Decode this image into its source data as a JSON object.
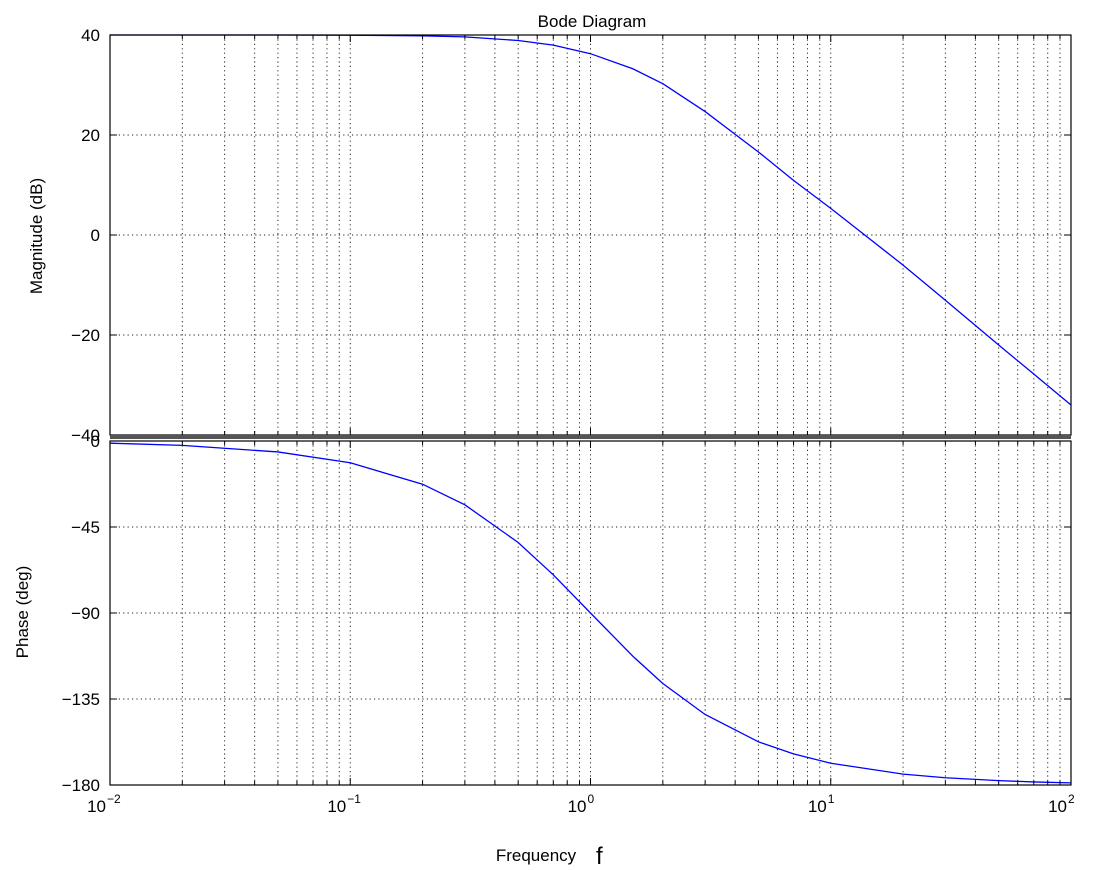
{
  "chart_data": {
    "type": "line",
    "title": "Bode Diagram",
    "xlabel": "Frequency",
    "xlabel_symbol": "f",
    "x_scale": "log",
    "xlim": [
      0.01,
      100
    ],
    "x_ticks": [
      {
        "value": 0.01,
        "base": "10",
        "exp": "−2"
      },
      {
        "value": 0.1,
        "base": "10",
        "exp": "−1"
      },
      {
        "value": 1,
        "base": "10",
        "exp": "0"
      },
      {
        "value": 10,
        "base": "10",
        "exp": "1"
      },
      {
        "value": 100,
        "base": "10",
        "exp": "2"
      }
    ],
    "grid": true,
    "line_color": "#0000ff",
    "panels": [
      {
        "ylabel": "Magnitude (dB)",
        "ylim": [
          -40,
          40
        ],
        "y_ticks": [
          "40",
          "20",
          "0",
          "−20",
          "−40"
        ],
        "y_tick_values": [
          40,
          20,
          0,
          -20,
          -40
        ],
        "series": [
          {
            "x": [
              0.01,
              0.02,
              0.05,
              0.1,
              0.2,
              0.3,
              0.5,
              0.7,
              1,
              1.5,
              2,
              3,
              5,
              7,
              10,
              20,
              30,
              50,
              70,
              100
            ],
            "values": [
              40,
              40,
              40,
              39.96,
              39.83,
              39.62,
              38.9,
              37.97,
              36.26,
              33.25,
              30.26,
              24.69,
              16.61,
              10.93,
              5.32,
              -6.02,
              -13.06,
              -22,
              -27.81,
              -34
            ]
          }
        ]
      },
      {
        "ylabel": "Phase (deg)",
        "ylim": [
          -180,
          0
        ],
        "y_ticks": [
          "0",
          "−45",
          "−90",
          "−135",
          "−180"
        ],
        "y_tick_values": [
          0,
          -45,
          -90,
          -135,
          -180
        ],
        "series": [
          {
            "x": [
              0.01,
              0.02,
              0.05,
              0.1,
              0.2,
              0.3,
              0.5,
              0.7,
              1,
              1.5,
              2,
              3,
              5,
              7,
              10,
              20,
              30,
              50,
              70,
              100
            ],
            "values": [
              -1.15,
              -2.29,
              -5.72,
              -11.4,
              -22.6,
              -33.4,
              -53.1,
              -70,
              -90,
              -112.6,
              -126.9,
              -143.1,
              -157.4,
              -163.7,
              -168.6,
              -174.3,
              -176.2,
              -177.7,
              -178.4,
              -178.9
            ]
          }
        ]
      }
    ]
  }
}
